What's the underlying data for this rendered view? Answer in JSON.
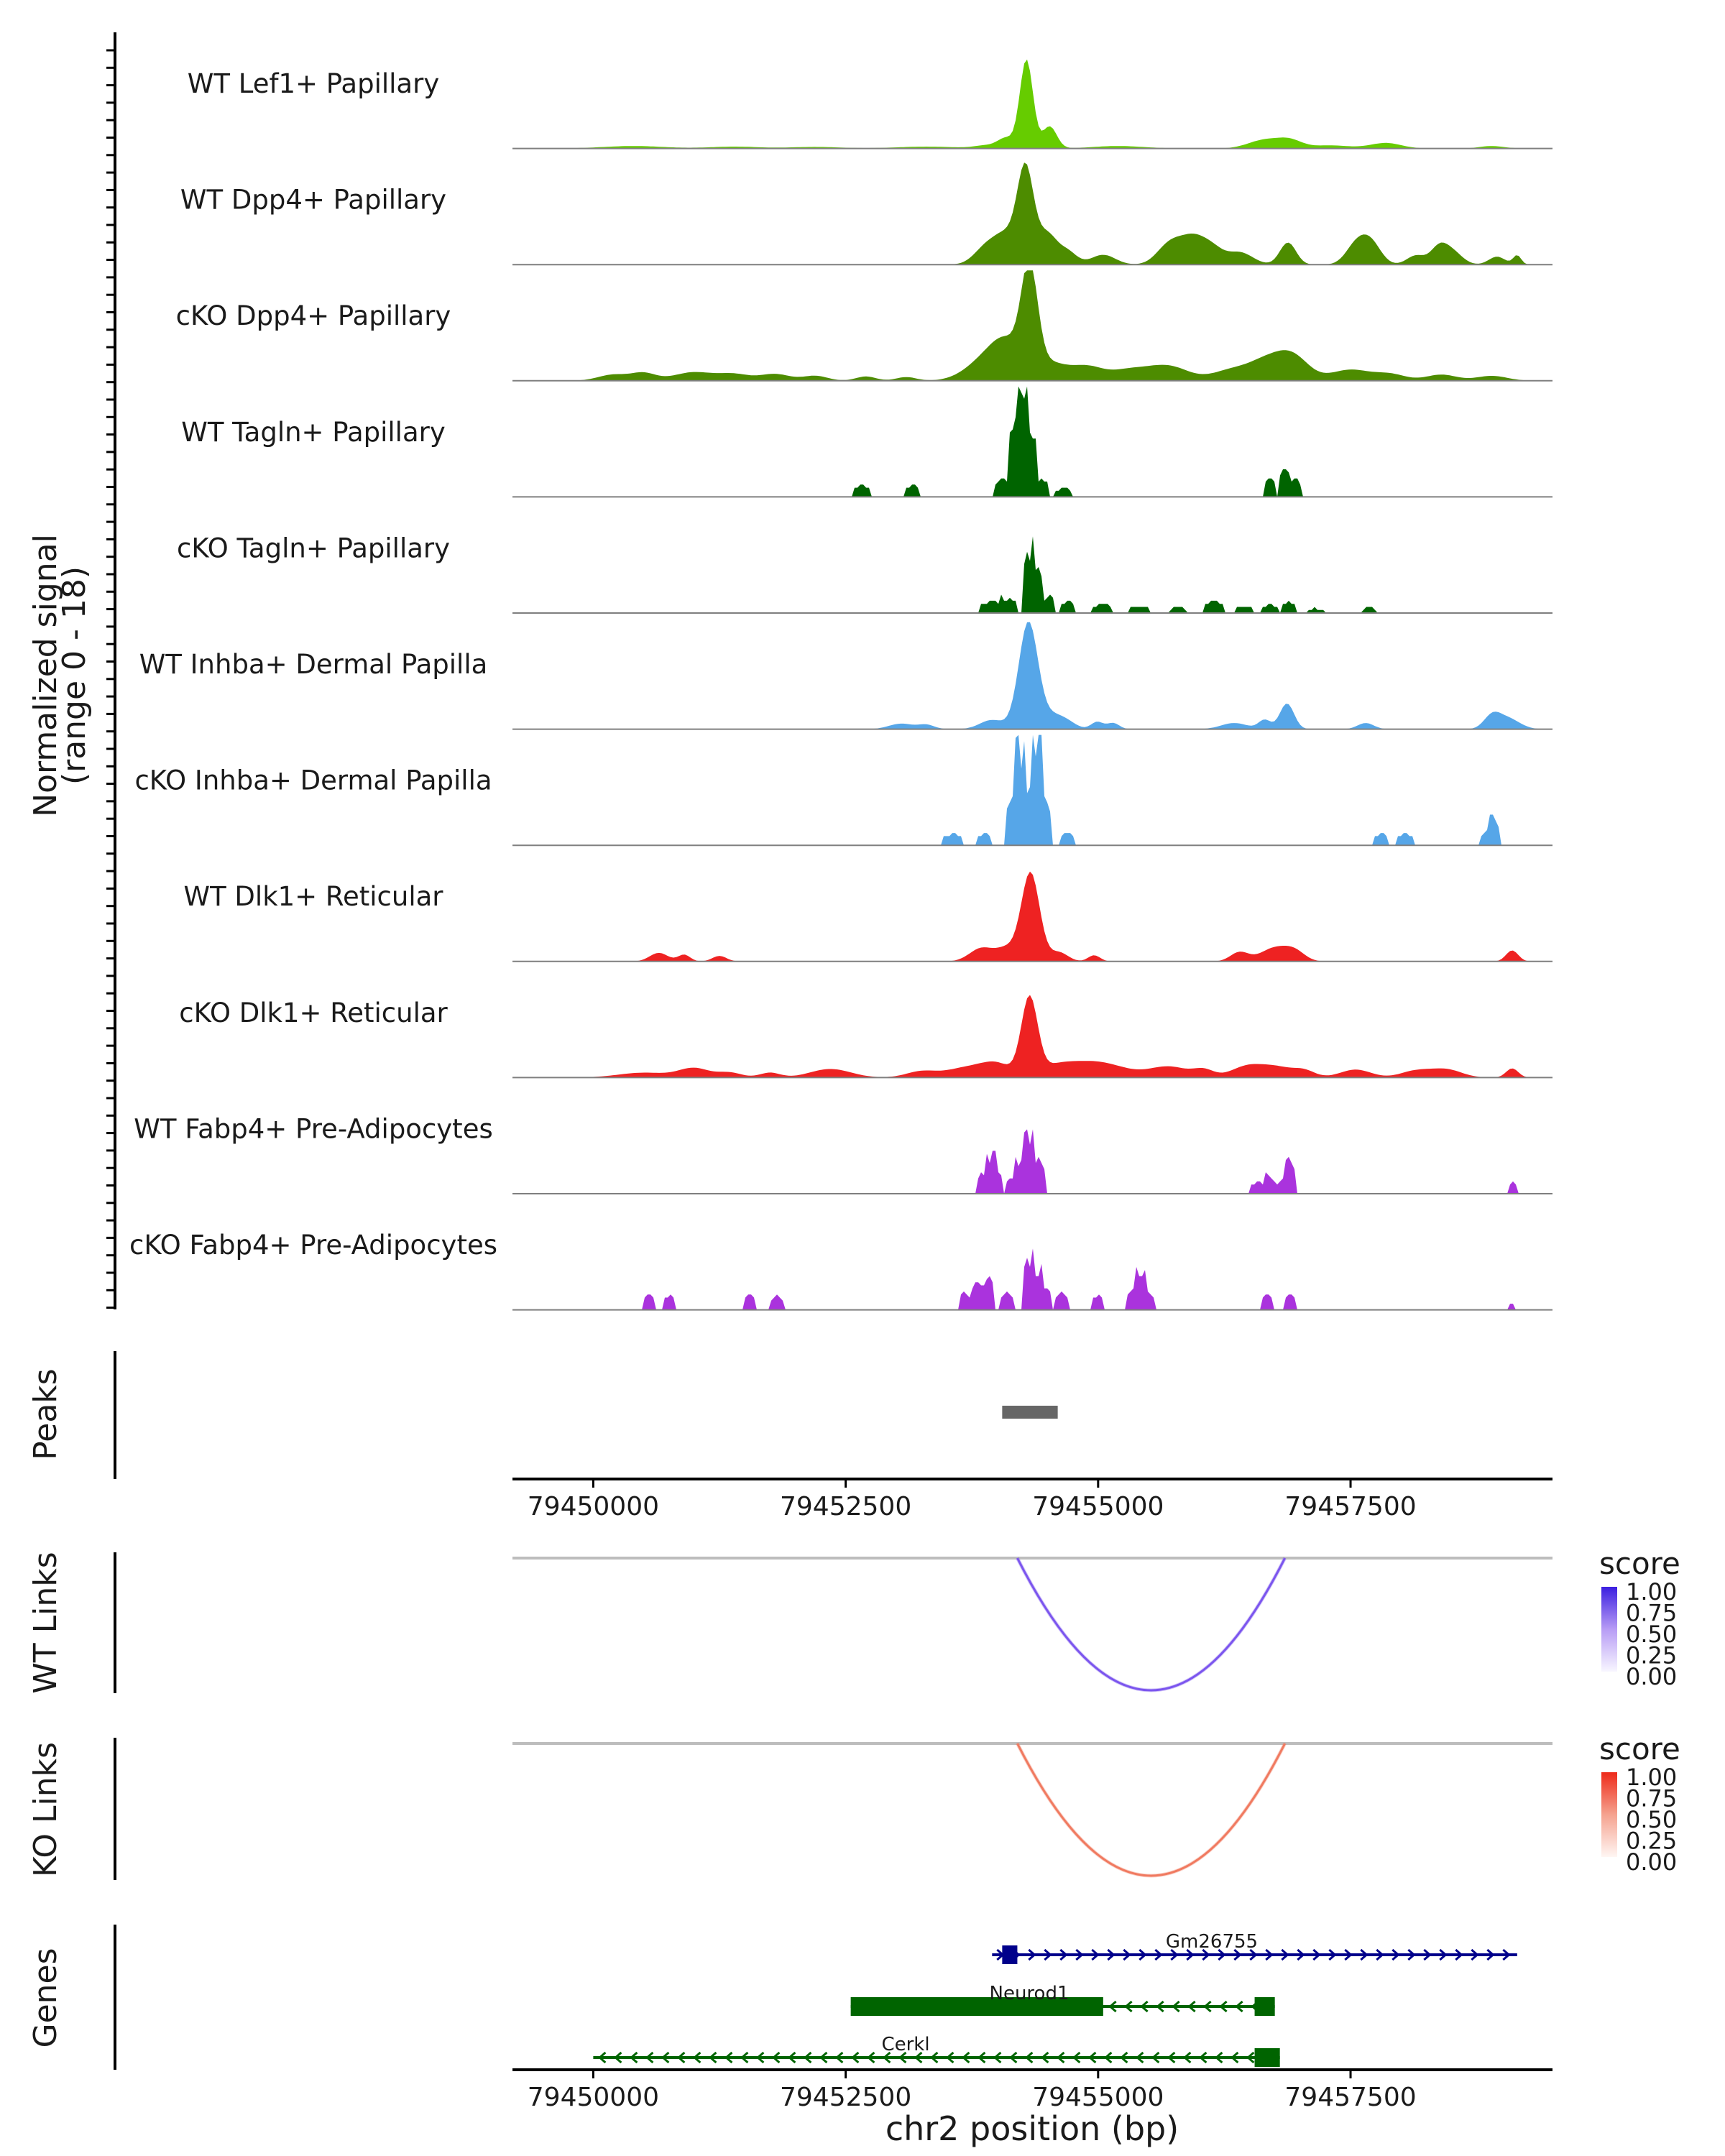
{
  "colors": {
    "axis": "#000000",
    "baseline": "#7f7f7f",
    "peak": "#666666",
    "link_baseline": "#bdbdbd",
    "wt_link_high": "#3b1fe0",
    "wt_link_low": "#f4f0ff",
    "ko_link_high": "#ee2a1a",
    "ko_link_low": "#fff2ee",
    "gene_blue": "#00008b",
    "gene_green": "#006400"
  },
  "chart_data": {
    "type": "genome-coverage",
    "region": {
      "chromosome": "chr2",
      "start": 79449200,
      "end": 79459500
    },
    "coverage": {
      "ylabel_line1": "Normalized signal",
      "ylabel_line2": "(range 0 - 18)",
      "yrange": [
        0,
        18
      ],
      "tracks": [
        {
          "name": "WT Lef1+ Papillary",
          "color": "#66cc00",
          "kind": "smooth",
          "peaks": [
            [
              79450400,
              300,
              0.4
            ],
            [
              79451400,
              250,
              0.3
            ],
            [
              79452200,
              250,
              0.25
            ],
            [
              79453300,
              300,
              0.3
            ],
            [
              79453900,
              120,
              0.5
            ],
            [
              79454090,
              80,
              1.6
            ],
            [
              79454290,
              65,
              14.5
            ],
            [
              79454520,
              70,
              3.6
            ],
            [
              79455200,
              250,
              0.4
            ],
            [
              79456650,
              160,
              1.4
            ],
            [
              79456900,
              120,
              1.2
            ],
            [
              79457300,
              200,
              0.5
            ],
            [
              79457850,
              150,
              0.9
            ],
            [
              79458900,
              120,
              0.4
            ]
          ]
        },
        {
          "name": "WT Dpp4+ Papillary",
          "color": "#4d8c00",
          "kind": "smooth",
          "peaks": [
            [
              79453900,
              120,
              3.0
            ],
            [
              79454100,
              110,
              4.3
            ],
            [
              79454280,
              80,
              15.0
            ],
            [
              79454490,
              100,
              5.0
            ],
            [
              79454700,
              90,
              2.0
            ],
            [
              79455050,
              120,
              1.6
            ],
            [
              79455700,
              120,
              3.0
            ],
            [
              79455950,
              140,
              4.5
            ],
            [
              79456150,
              100,
              1.5
            ],
            [
              79456400,
              130,
              2.0
            ],
            [
              79456880,
              80,
              3.6
            ],
            [
              79457550,
              100,
              3.0
            ],
            [
              79457700,
              100,
              3.5
            ],
            [
              79458150,
              90,
              1.5
            ],
            [
              79458370,
              80,
              2.4
            ],
            [
              79458500,
              100,
              2.2
            ],
            [
              79458950,
              80,
              1.3
            ],
            [
              79459150,
              40,
              1.5
            ]
          ]
        },
        {
          "name": "cKO Dpp4+ Papillary",
          "color": "#4d8c00",
          "kind": "smooth",
          "peaks": [
            [
              79450200,
              150,
              1.0
            ],
            [
              79450500,
              120,
              1.2
            ],
            [
              79451000,
              200,
              1.4
            ],
            [
              79451400,
              150,
              1.0
            ],
            [
              79451800,
              150,
              1.1
            ],
            [
              79452200,
              120,
              0.8
            ],
            [
              79452700,
              100,
              0.7
            ],
            [
              79453100,
              100,
              0.6
            ],
            [
              79453900,
              200,
              3.5
            ],
            [
              79454100,
              150,
              4.5
            ],
            [
              79454320,
              80,
              16.0
            ],
            [
              79454500,
              200,
              3.0
            ],
            [
              79454900,
              150,
              1.9
            ],
            [
              79455300,
              200,
              1.7
            ],
            [
              79455700,
              200,
              2.3
            ],
            [
              79456300,
              180,
              1.5
            ],
            [
              79456700,
              200,
              3.6
            ],
            [
              79456950,
              150,
              2.8
            ],
            [
              79457500,
              200,
              1.8
            ],
            [
              79457900,
              150,
              1.0
            ],
            [
              79458400,
              150,
              1.0
            ],
            [
              79458900,
              150,
              0.8
            ]
          ]
        },
        {
          "name": "WT Tagln+ Papillary",
          "color": "#006400",
          "kind": "blocky",
          "peaks": [
            [
              79452650,
              90,
              2.0
            ],
            [
              79453170,
              70,
              2.0
            ],
            [
              79454060,
              90,
              3.0
            ],
            [
              79454180,
              55,
              13.0
            ],
            [
              79454250,
              55,
              18.0
            ],
            [
              79454330,
              60,
              11.0
            ],
            [
              79454450,
              70,
              3.0
            ],
            [
              79454660,
              80,
              1.6
            ],
            [
              79456700,
              50,
              3.4
            ],
            [
              79456850,
              55,
              5.0
            ],
            [
              79456950,
              60,
              3.2
            ]
          ]
        },
        {
          "name": "cKO Tagln+ Papillary",
          "color": "#006400",
          "kind": "blocky",
          "peaks": [
            [
              79453950,
              110,
              2.0
            ],
            [
              79454120,
              90,
              2.4
            ],
            [
              79454300,
              60,
              10.0
            ],
            [
              79454400,
              60,
              8.0
            ],
            [
              79454520,
              60,
              3.0
            ],
            [
              79454700,
              80,
              2.0
            ],
            [
              79455050,
              100,
              1.5
            ],
            [
              79455400,
              100,
              1.2
            ],
            [
              79455800,
              80,
              1.0
            ],
            [
              79456150,
              100,
              2.0
            ],
            [
              79456450,
              80,
              1.2
            ],
            [
              79456700,
              80,
              1.5
            ],
            [
              79456890,
              70,
              1.8
            ],
            [
              79457150,
              80,
              0.8
            ],
            [
              79457680,
              70,
              1.0
            ]
          ]
        },
        {
          "name": "WT Inhba+ Dermal Papilla",
          "color": "#56a6e8",
          "kind": "smooth",
          "peaks": [
            [
              79453050,
              120,
              0.9
            ],
            [
              79453300,
              80,
              0.7
            ],
            [
              79453950,
              120,
              1.5
            ],
            [
              79454310,
              95,
              17.5
            ],
            [
              79454550,
              100,
              2.0
            ],
            [
              79454700,
              90,
              1.0
            ],
            [
              79454990,
              60,
              1.2
            ],
            [
              79455150,
              60,
              1.0
            ],
            [
              79456350,
              130,
              1.0
            ],
            [
              79456650,
              60,
              1.5
            ],
            [
              79456870,
              70,
              4.2
            ],
            [
              79457650,
              80,
              1.0
            ],
            [
              79458900,
              80,
              1.9
            ],
            [
              79459050,
              120,
              1.8
            ]
          ]
        },
        {
          "name": "cKO Inhba+ Dermal Papilla",
          "color": "#56a6e8",
          "kind": "blocky",
          "peaks": [
            [
              79453570,
              100,
              2.0
            ],
            [
              79453870,
              80,
              2.0
            ],
            [
              79454150,
              70,
              8.0
            ],
            [
              79454220,
              60,
              14.0
            ],
            [
              79454320,
              60,
              10.0
            ],
            [
              79454400,
              60,
              16.0
            ],
            [
              79454470,
              60,
              8.0
            ],
            [
              79454700,
              80,
              2.2
            ],
            [
              79457800,
              80,
              2.0
            ],
            [
              79458040,
              90,
              2.0
            ],
            [
              79458850,
              60,
              2.5
            ],
            [
              79458930,
              60,
              4.0
            ]
          ]
        },
        {
          "name": "WT Dlk1+ Reticular",
          "color": "#ee2222",
          "kind": "smooth",
          "peaks": [
            [
              79450650,
              90,
              1.4
            ],
            [
              79450900,
              60,
              1.1
            ],
            [
              79451250,
              70,
              0.9
            ],
            [
              79453850,
              120,
              2.2
            ],
            [
              79454100,
              100,
              2.0
            ],
            [
              79454330,
              90,
              14.5
            ],
            [
              79454610,
              90,
              1.5
            ],
            [
              79454960,
              60,
              1.0
            ],
            [
              79456400,
              90,
              1.5
            ],
            [
              79456750,
              140,
              2.2
            ],
            [
              79456950,
              100,
              1.4
            ],
            [
              79459100,
              60,
              1.8
            ]
          ]
        },
        {
          "name": "cKO Dlk1+ Reticular",
          "color": "#ee2222",
          "kind": "smooth",
          "peaks": [
            [
              79450500,
              250,
              0.8
            ],
            [
              79451000,
              150,
              1.5
            ],
            [
              79451350,
              120,
              0.8
            ],
            [
              79451750,
              100,
              0.8
            ],
            [
              79452350,
              200,
              1.4
            ],
            [
              79453250,
              150,
              1.0
            ],
            [
              79453700,
              200,
              1.6
            ],
            [
              79454000,
              150,
              2.0
            ],
            [
              79454320,
              80,
              12.5
            ],
            [
              79454600,
              200,
              2.0
            ],
            [
              79454950,
              200,
              1.8
            ],
            [
              79455200,
              200,
              1.0
            ],
            [
              79455700,
              200,
              1.8
            ],
            [
              79456050,
              100,
              1.1
            ],
            [
              79456450,
              150,
              1.4
            ],
            [
              79456750,
              200,
              1.8
            ],
            [
              79457050,
              100,
              0.8
            ],
            [
              79457550,
              150,
              1.3
            ],
            [
              79458150,
              150,
              1.1
            ],
            [
              79458450,
              150,
              1.3
            ],
            [
              79459100,
              60,
              1.5
            ]
          ]
        },
        {
          "name": "WT Fabp4+ Pre-Adipocytes",
          "color": "#aa33dd",
          "kind": "blocky",
          "peaks": [
            [
              79453850,
              60,
              3.5
            ],
            [
              79453930,
              60,
              5.2
            ],
            [
              79454000,
              60,
              3.8
            ],
            [
              79454150,
              60,
              2.8
            ],
            [
              79454240,
              60,
              5.5
            ],
            [
              79454320,
              60,
              8.0
            ],
            [
              79454410,
              60,
              6.0
            ],
            [
              79456580,
              80,
              2.0
            ],
            [
              79456700,
              60,
              3.0
            ],
            [
              79456830,
              60,
              2.5
            ],
            [
              79456910,
              60,
              5.0
            ],
            [
              79459100,
              40,
              2.0
            ]
          ]
        },
        {
          "name": "cKO Fabp4+ Pre-Adipocytes",
          "color": "#aa33dd",
          "kind": "blocky",
          "peaks": [
            [
              79450550,
              60,
              2.5
            ],
            [
              79450760,
              60,
              2.5
            ],
            [
              79451550,
              60,
              2.5
            ],
            [
              79451820,
              60,
              2.5
            ],
            [
              79453680,
              60,
              3.0
            ],
            [
              79453800,
              60,
              5.0
            ],
            [
              79453920,
              60,
              5.5
            ],
            [
              79454100,
              60,
              3.0
            ],
            [
              79454300,
              55,
              8.5
            ],
            [
              79454400,
              55,
              6.0
            ],
            [
              79454480,
              60,
              4.0
            ],
            [
              79454640,
              60,
              3.0
            ],
            [
              79455000,
              60,
              2.5
            ],
            [
              79455340,
              55,
              3.5
            ],
            [
              79455420,
              55,
              6.0
            ],
            [
              79455500,
              55,
              3.0
            ],
            [
              79456680,
              60,
              2.8
            ],
            [
              79456900,
              60,
              2.8
            ],
            [
              79459100,
              30,
              1.0
            ]
          ]
        }
      ]
    },
    "peaks_track": {
      "label": "Peaks",
      "regions": [
        [
          79454050,
          79454600
        ]
      ]
    },
    "axis": {
      "xlabel": "chr2 position (bp)",
      "ticks": [
        79450000,
        79452500,
        79455000,
        79457500
      ],
      "tick_labels": [
        "79450000",
        "79452500",
        "79455000",
        "79457500"
      ]
    },
    "links": [
      {
        "label": "WT Links",
        "legend_title": "score",
        "legend_ticks": [
          "1.00",
          "0.75",
          "0.50",
          "0.25",
          "0.00"
        ],
        "arc": {
          "start": 79454200,
          "end": 79456850,
          "score": 0.6
        }
      },
      {
        "label": "KO Links",
        "legend_title": "score",
        "legend_ticks": [
          "1.00",
          "0.75",
          "0.50",
          "0.25",
          "0.00"
        ],
        "arc": {
          "start": 79454200,
          "end": 79456850,
          "score": 0.6
        }
      }
    ],
    "genes": {
      "label": "Genes",
      "items": [
        {
          "name": "Gm26755",
          "strand": "+",
          "start": 79453950,
          "end": 79459150,
          "exons": [
            [
              79454050,
              79454200
            ]
          ],
          "color_key": "gene_blue"
        },
        {
          "name": "Neurod1",
          "strand": "-",
          "start": 79452550,
          "end": 79456750,
          "exons": [
            [
              79452550,
              79455050
            ],
            [
              79456550,
              79456750
            ]
          ],
          "color_key": "gene_green"
        },
        {
          "name": "Cerkl",
          "strand": "-",
          "start": 79450000,
          "end": 79456800,
          "exons": [
            [
              79456550,
              79456800
            ]
          ],
          "color_key": "gene_green"
        }
      ]
    }
  }
}
